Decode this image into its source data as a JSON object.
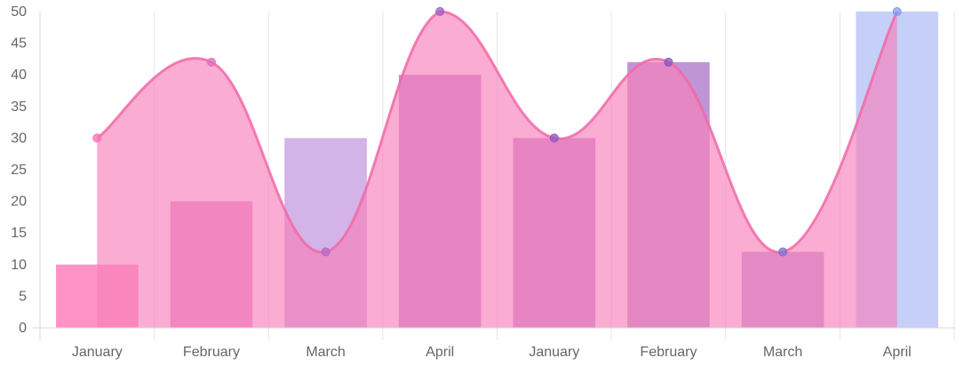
{
  "chart_data": {
    "type": "bar",
    "categories": [
      "January",
      "February",
      "March",
      "April",
      "January",
      "February",
      "March",
      "April"
    ],
    "ylim": [
      0,
      50
    ],
    "y_ticks": [
      0,
      5,
      10,
      15,
      20,
      25,
      30,
      35,
      40,
      45,
      50
    ],
    "grid": true,
    "legend": "none",
    "series": [
      {
        "type": "bar",
        "values": [
          10,
          20,
          30,
          40,
          30,
          42,
          12,
          50
        ],
        "colors": [
          "#ff6fb4",
          "#e26eb9",
          "#c49ae0",
          "#b66ac4",
          "#b46cc2",
          "#ab72c7",
          "#b07ac9",
          "#b2bff5"
        ]
      },
      {
        "type": "area",
        "values": [
          30,
          42,
          12,
          50,
          30,
          42,
          12,
          50
        ],
        "fill": "#f77fba",
        "line_color": "#f06aa8",
        "point_colors": [
          "#ff6fb4",
          "#e26eb9",
          "#b66ac4",
          "#9e5fc2",
          "#8c5abf",
          "#8a55c0",
          "#7f72d6",
          "#7f9cf0"
        ]
      }
    ]
  }
}
